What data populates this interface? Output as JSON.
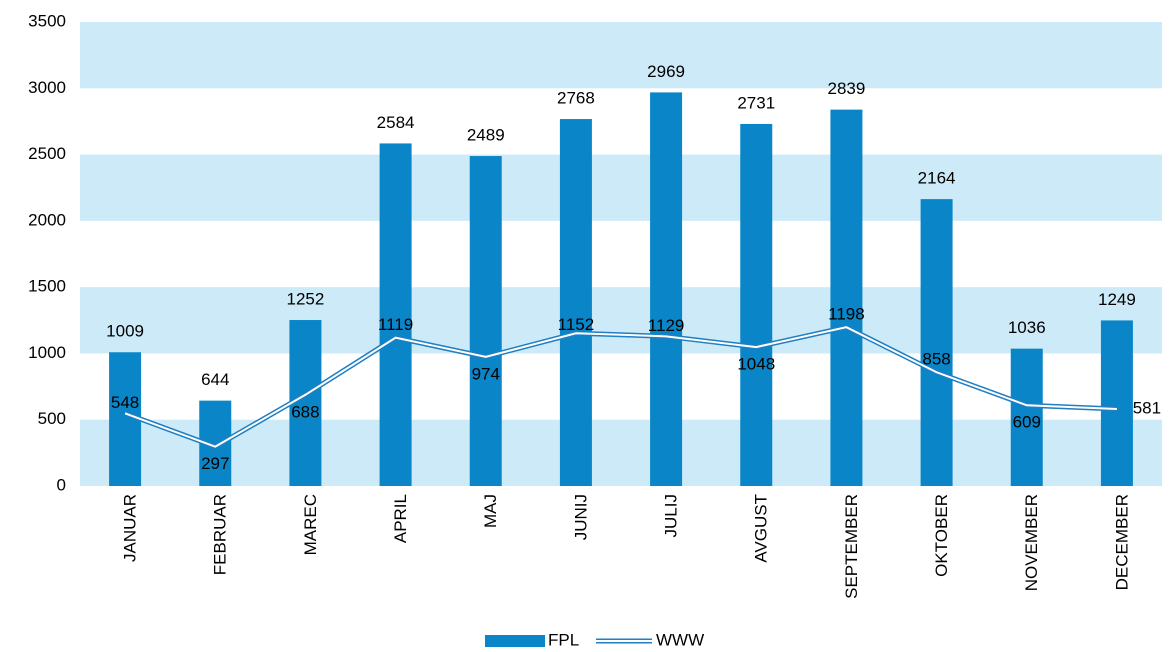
{
  "chart_data": {
    "type": "bar_line",
    "categories": [
      "JANUAR",
      "FEBRUAR",
      "MAREC",
      "APRIL",
      "MAJ",
      "JUNIJ",
      "JULIJ",
      "AVGUST",
      "SEPTEMBER",
      "OKTOBER",
      "NOVEMBER",
      "DECEMBER"
    ],
    "series": [
      {
        "name": "FPL",
        "type": "bar",
        "color": "#0a86c8",
        "values": [
          1009,
          644,
          1252,
          2584,
          2489,
          2768,
          2969,
          2731,
          2839,
          2164,
          1036,
          1249
        ]
      },
      {
        "name": "WWW",
        "type": "line",
        "color": "#1f7fc2",
        "values": [
          548,
          297,
          688,
          1119,
          974,
          1152,
          1129,
          1048,
          1198,
          858,
          609,
          581
        ]
      }
    ],
    "ylim": [
      0,
      3500
    ],
    "yticks": [
      0,
      500,
      1000,
      1500,
      2000,
      2500,
      3000,
      3500
    ],
    "band_color": "#cdeaf8",
    "legend": "bottom"
  }
}
